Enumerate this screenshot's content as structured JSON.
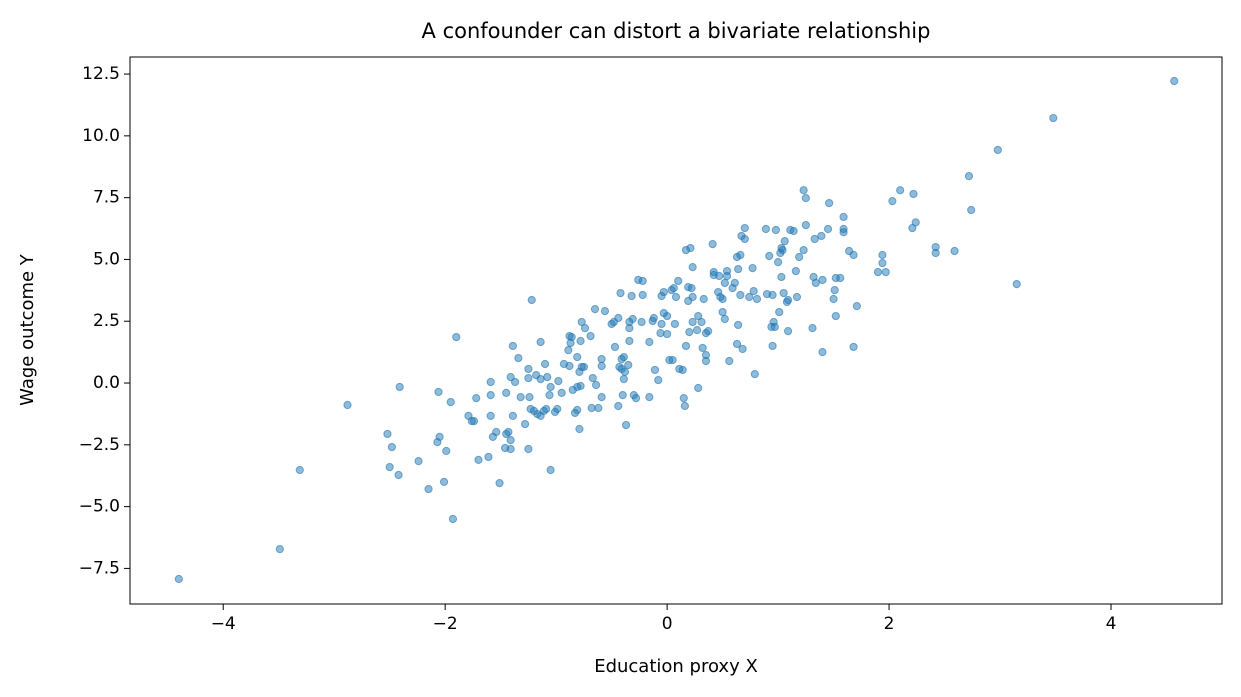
{
  "chart_data": {
    "type": "scatter",
    "title": "A confounder can distort a bivariate relationship",
    "xlabel": "Education proxy X",
    "ylabel": "Wage outcome Y",
    "color": "#1f77b4",
    "xlim": [
      -4.84,
      5.0
    ],
    "ylim": [
      -8.94,
      13.19
    ],
    "xticks": [
      {
        "value": -4,
        "label": "−4"
      },
      {
        "value": -2,
        "label": "−2"
      },
      0,
      2,
      4
    ],
    "yticks": [
      {
        "value": -7.5,
        "label": "−7.5"
      },
      {
        "value": -5,
        "label": "−5.0"
      },
      {
        "value": -2.5,
        "label": "−2.5"
      },
      {
        "value": 0,
        "label": "0.0"
      },
      2.5,
      {
        "value": 5,
        "label": "5.0"
      },
      7.5,
      {
        "value": 10,
        "label": "10.0"
      },
      12.5
    ],
    "x": [
      4.57,
      3.48,
      2.98,
      2.72,
      2.74,
      3.15,
      2.59,
      2.42,
      2.42,
      2.24,
      2.21,
      2.22,
      2.1,
      2.03,
      1.94,
      1.94,
      1.9,
      1.97,
      1.71,
      1.68,
      1.68,
      1.64,
      1.59,
      1.59,
      1.59,
      1.56,
      1.52,
      1.51,
      1.5,
      1.52,
      1.45,
      1.46,
      1.4,
      1.34,
      1.39,
      1.33,
      1.32,
      1.4,
      1.31,
      1.25,
      1.23,
      1.25,
      1.23,
      1.19,
      1.16,
      1.17,
      1.14,
      1.11,
      1.09,
      1.08,
      1.09,
      1.06,
      1.04,
      1.03,
      1.02,
      1.03,
      1.0,
      1.05,
      0.98,
      1.01,
      0.96,
      0.95,
      0.94,
      0.95,
      0.97,
      0.92,
      0.9,
      0.81,
      0.89,
      0.78,
      0.74,
      0.77,
      0.7,
      0.7,
      0.67,
      0.66,
      0.63,
      0.64,
      0.66,
      0.68,
      0.63,
      0.64,
      0.79,
      0.56,
      0.61,
      0.59,
      0.54,
      0.54,
      0.52,
      0.5,
      0.52,
      0.5,
      0.48,
      0.47,
      0.46,
      0.41,
      0.42,
      0.42,
      0.33,
      0.37,
      0.35,
      0.35,
      0.35,
      0.32,
      0.31,
      0.28,
      0.27,
      0.28,
      0.23,
      0.23,
      0.22,
      0.21,
      0.17,
      0.19,
      0.19,
      0.23,
      0.2,
      0.17,
      0.15,
      0.16,
      0.14,
      0.11,
      0.08,
      0.1,
      0.07,
      0.06,
      0.05,
      0.02,
      0.0,
      0.04,
      -0.03,
      -0.05,
      0.0,
      -0.03,
      -0.05,
      -0.06,
      -0.11,
      -0.08,
      -0.16,
      -0.12,
      -0.13,
      -0.16,
      -0.22,
      -0.22,
      -0.23,
      -0.26,
      -0.3,
      -0.28,
      -0.32,
      -0.31,
      -0.34,
      -0.34,
      -0.34,
      -0.37,
      -0.4,
      -0.35,
      -0.38,
      -0.39,
      -0.39,
      -0.41,
      -0.43,
      -0.41,
      -0.44,
      -0.42,
      -0.44,
      -0.47,
      -0.48,
      -0.5,
      -0.56,
      -0.59,
      -0.59,
      -0.59,
      -0.62,
      -0.65,
      -0.64,
      -0.67,
      -0.68,
      -0.69,
      -0.74,
      -0.77,
      -0.78,
      -0.75,
      -0.77,
      -0.78,
      -0.81,
      -0.79,
      -0.81,
      -0.79,
      -0.81,
      -0.85,
      -0.83,
      -0.86,
      -0.88,
      -0.87,
      -0.89,
      -0.88,
      -0.93,
      -0.95,
      -0.98,
      -0.99,
      -1.01,
      -1.05,
      -1.05,
      -1.06,
      -1.09,
      -1.08,
      -1.1,
      -1.11,
      -1.14,
      -1.14,
      -1.14,
      -1.18,
      -1.17,
      -1.2,
      -1.22,
      -1.25,
      -1.24,
      -1.25,
      -1.25,
      -1.28,
      -1.23,
      -1.32,
      -1.34,
      -1.37,
      -1.39,
      -1.39,
      -1.41,
      -1.43,
      -1.41,
      -1.45,
      -1.45,
      -1.46,
      -1.41,
      -1.51,
      -1.54,
      -1.57,
      -1.59,
      -1.59,
      -1.59,
      -1.61,
      -1.7,
      -1.72,
      -1.74,
      -1.76,
      -1.79,
      -1.9,
      -1.95,
      -1.93,
      -1.99,
      -2.01,
      -2.05,
      -2.07,
      -2.06,
      -2.15,
      -2.24,
      -2.41,
      -2.42,
      -2.48,
      -2.5,
      -2.52,
      -2.88,
      -3.31,
      -3.49,
      -4.4
    ],
    "values": [
      12.22,
      10.72,
      9.43,
      8.37,
      7.0,
      4.0,
      5.34,
      5.5,
      5.26,
      6.5,
      6.27,
      7.65,
      7.8,
      7.36,
      5.18,
      4.85,
      4.49,
      4.49,
      3.11,
      1.46,
      5.18,
      5.34,
      6.72,
      6.1,
      6.23,
      4.25,
      4.25,
      3.76,
      3.4,
      2.71,
      6.23,
      7.28,
      4.17,
      4.05,
      5.95,
      5.83,
      4.29,
      1.25,
      2.22,
      7.48,
      7.8,
      6.39,
      5.38,
      5.1,
      4.53,
      3.48,
      6.15,
      6.19,
      3.36,
      3.28,
      2.1,
      5.74,
      5.38,
      5.46,
      5.26,
      4.29,
      4.89,
      3.64,
      6.19,
      2.87,
      2.47,
      3.56,
      2.27,
      1.5,
      2.27,
      5.14,
      3.6,
      3.4,
      6.23,
      3.72,
      3.48,
      4.65,
      5.83,
      6.27,
      5.95,
      5.18,
      5.1,
      4.61,
      3.56,
      1.38,
      1.58,
      2.35,
      0.36,
      0.89,
      4.05,
      3.84,
      4.53,
      4.33,
      4.05,
      3.4,
      2.59,
      2.87,
      3.48,
      4.33,
      3.68,
      5.62,
      4.49,
      4.37,
      3.4,
      2.1,
      0.89,
      1.13,
      2.02,
      1.42,
      2.47,
      -0.2,
      2.14,
      2.71,
      3.48,
      4.69,
      3.84,
      5.46,
      5.38,
      3.88,
      3.32,
      2.47,
      2.06,
      1.5,
      -0.61,
      -0.93,
      0.53,
      0.57,
      3.48,
      4.13,
      2.39,
      3.84,
      0.93,
      0.93,
      1.98,
      3.76,
      3.68,
      3.52,
      2.71,
      2.83,
      2.39,
      2.02,
      0.53,
      0.12,
      -0.57,
      2.63,
      2.51,
      1.66,
      4.13,
      3.56,
      2.47,
      4.17,
      -0.49,
      -0.61,
      3.52,
      2.59,
      2.47,
      2.22,
      1.7,
      -1.7,
      -0.49,
      0.73,
      0.45,
      0.16,
      1.05,
      0.97,
      0.65,
      0.57,
      2.63,
      3.64,
      -0.93,
      1.46,
      2.47,
      2.39,
      2.91,
      0.97,
      0.69,
      -0.57,
      -1.01,
      2.99,
      -0.08,
      0.2,
      -1.01,
      1.9,
      2.22,
      2.47,
      1.7,
      0.65,
      0.65,
      -0.12,
      -0.16,
      0.45,
      1.05,
      -1.86,
      -1.09,
      -0.28,
      -1.21,
      1.86,
      1.9,
      1.62,
      1.33,
      0.69,
      0.77,
      -0.4,
      0.08,
      -1.05,
      -1.17,
      -0.16,
      -3.52,
      -0.49,
      -1.05,
      0.24,
      0.77,
      -1.13,
      1.66,
      -1.33,
      0.16,
      0.32,
      -1.25,
      -1.13,
      3.36,
      -2.67,
      -0.57,
      0.2,
      0.57,
      -1.66,
      -1.05,
      -0.57,
      1.01,
      0.04,
      -1.33,
      1.5,
      -2.31,
      -1.98,
      0.24,
      -2.06,
      -0.4,
      -2.63,
      -2.67,
      -4.05,
      -1.98,
      -2.18,
      -1.33,
      -0.49,
      0.04,
      -2.99,
      -3.11,
      -0.61,
      -1.54,
      -1.54,
      -1.33,
      1.86,
      -0.77,
      -5.5,
      -2.75,
      -4.0,
      -2.18,
      -2.39,
      -0.36,
      -4.29,
      -3.16,
      -0.16,
      -3.72,
      -2.59,
      -3.4,
      -2.06,
      -0.89,
      -3.52,
      -6.72,
      -7.93
    ]
  }
}
